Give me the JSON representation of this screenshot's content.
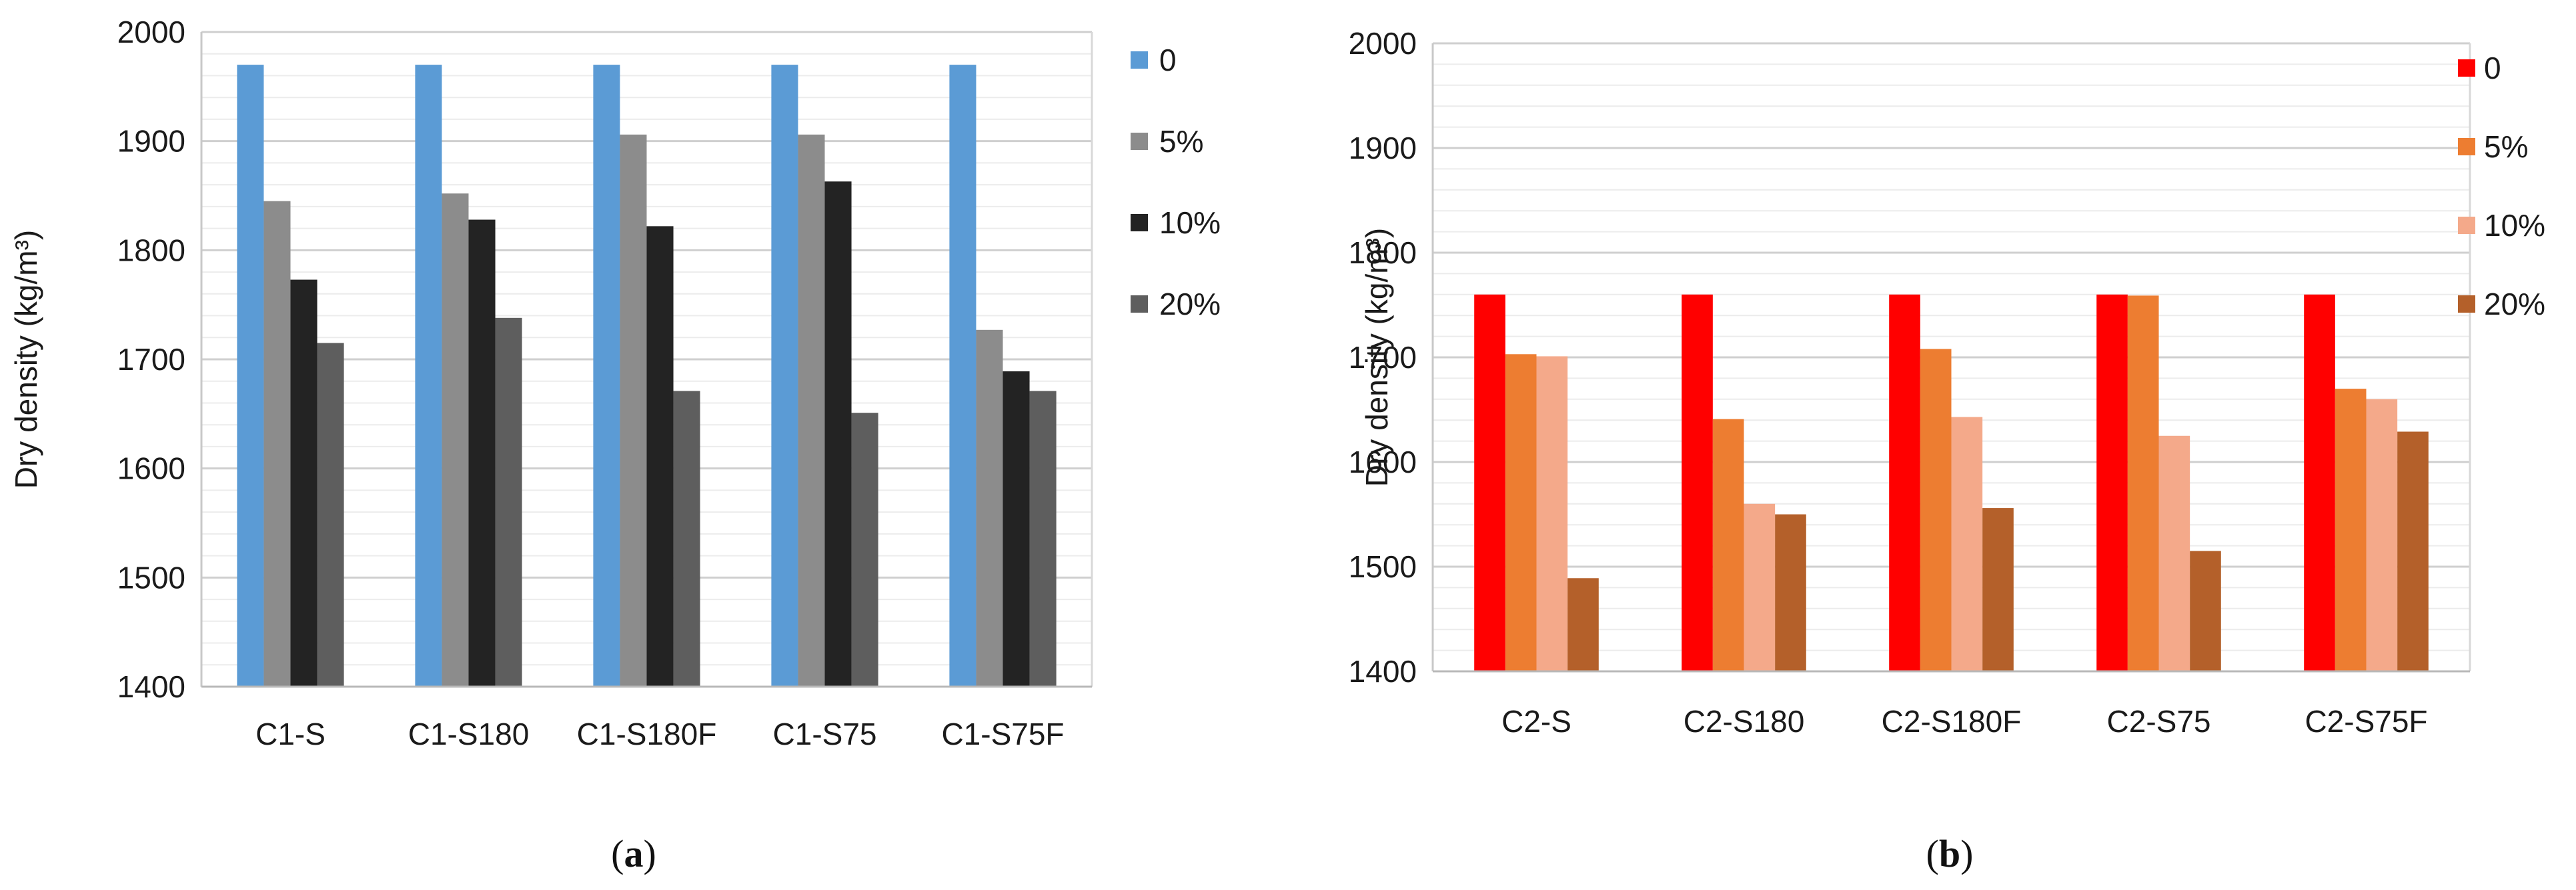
{
  "chart_data": [
    {
      "type": "bar",
      "caption_letter": "a",
      "ylabel": "Dry density (kg/m³)",
      "xlabel": "",
      "title": "",
      "ylim": [
        1400,
        2000
      ],
      "yticks": [
        1400,
        1500,
        1600,
        1700,
        1800,
        1900,
        2000
      ],
      "grid": true,
      "legend_position": "right",
      "categories": [
        "C1-S",
        "C1-S180",
        "C1-S180F",
        "C1-S75",
        "C1-S75F"
      ],
      "series": [
        {
          "name": "0",
          "color": "#5b9bd5",
          "values": [
            1970,
            1970,
            1970,
            1970,
            1970
          ]
        },
        {
          "name": "5%",
          "color": "#8c8c8c",
          "values": [
            1845,
            1852,
            1906,
            1906,
            1727
          ]
        },
        {
          "name": "10%",
          "color": "#232323",
          "values": [
            1773,
            1828,
            1822,
            1863,
            1689
          ]
        },
        {
          "name": "20%",
          "color": "#5e5e5e",
          "values": [
            1715,
            1738,
            1671,
            1651,
            1671
          ]
        }
      ]
    },
    {
      "type": "bar",
      "caption_letter": "b",
      "ylabel": "Dry density (kg/m³)",
      "xlabel": "",
      "title": "",
      "ylim": [
        1400,
        2000
      ],
      "yticks": [
        1400,
        1500,
        1600,
        1700,
        1800,
        1900,
        2000
      ],
      "grid": true,
      "legend_position": "top-right",
      "categories": [
        "C2-S",
        "C2-S180",
        "C2-S180F",
        "C2-S75",
        "C2-S75F"
      ],
      "series": [
        {
          "name": "0",
          "color": "#ff0000",
          "values": [
            1760,
            1760,
            1760,
            1760,
            1760
          ]
        },
        {
          "name": "5%",
          "color": "#ed7d31",
          "values": [
            1703,
            1641,
            1708,
            1759,
            1670
          ]
        },
        {
          "name": "10%",
          "color": "#f4a98a",
          "values": [
            1701,
            1560,
            1643,
            1625,
            1660
          ]
        },
        {
          "name": "20%",
          "color": "#b4602a",
          "values": [
            1489,
            1550,
            1556,
            1515,
            1629
          ]
        }
      ]
    }
  ]
}
